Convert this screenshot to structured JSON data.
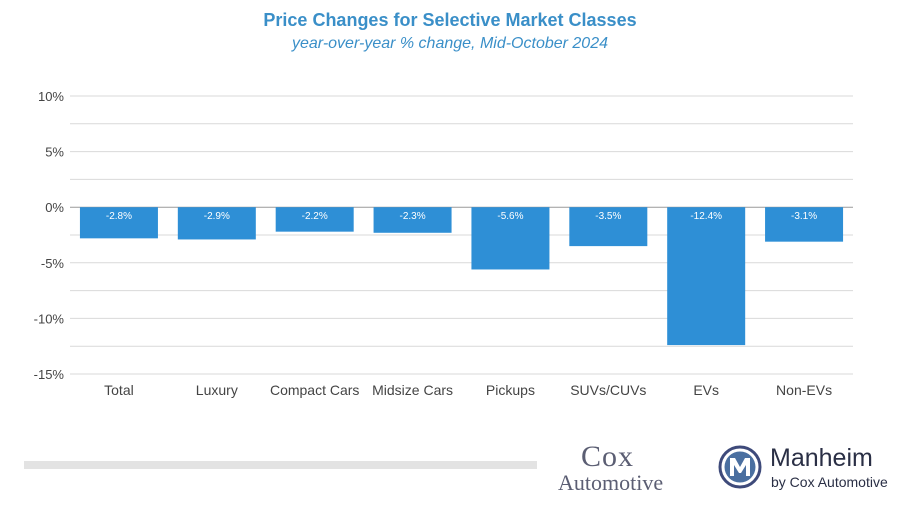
{
  "chart_data": {
    "type": "bar",
    "title": "Price Changes for Selective Market Classes",
    "subtitle": "year-over-year % change, Mid-October 2024",
    "categories": [
      "Total",
      "Luxury",
      "Compact Cars",
      "Midsize Cars",
      "Pickups",
      "SUVs/CUVs",
      "EVs",
      "Non-EVs"
    ],
    "values": [
      -2.8,
      -2.9,
      -2.2,
      -2.3,
      -5.6,
      -3.5,
      -12.4,
      -3.1
    ],
    "data_labels": [
      "-2.8%",
      "-2.9%",
      "-2.2%",
      "-2.3%",
      "-5.6%",
      "-3.5%",
      "-12.4%",
      "-3.1%"
    ],
    "ylim": [
      -15,
      10
    ],
    "yticks": [
      10,
      5,
      0,
      -5,
      -10,
      -15
    ],
    "ytick_labels": [
      "10%",
      "5%",
      "0%",
      "-5%",
      "-10%",
      "-15%"
    ],
    "grid": true,
    "bar_color": "#2e8fd6",
    "label_color": "#ffffff"
  },
  "branding": {
    "cox_word": "Cox",
    "automotive_word": "Automotive",
    "manheim_name": "Manheim",
    "manheim_sub": "by Cox Automotive"
  },
  "colors": {
    "title": "#3a8fc8",
    "grid": "#d9d9d9",
    "axis": "#444444"
  }
}
